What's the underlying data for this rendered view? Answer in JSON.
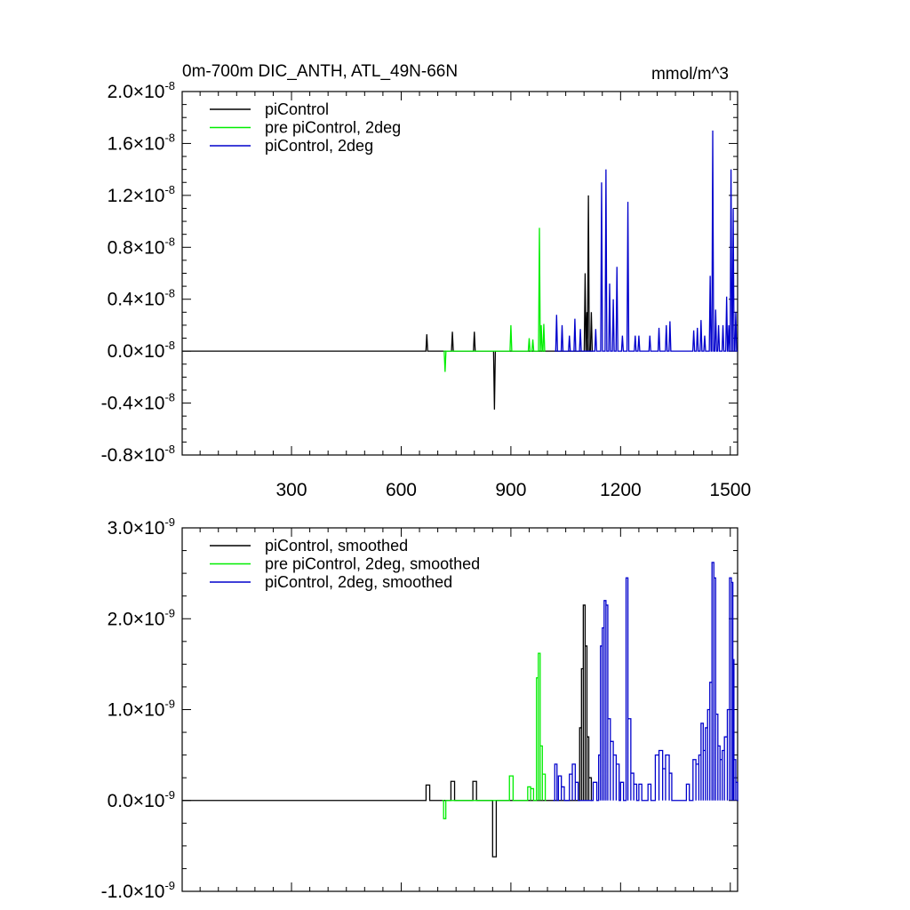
{
  "chart_data": [
    {
      "type": "line",
      "title": "0m-700m DIC_ANTH, ATL_49N-66N",
      "units": "mmol/m^3",
      "xlim": [
        1,
        1520
      ],
      "ylim": [
        -0.8,
        2.0
      ],
      "y_exponent": "-8",
      "y_ticks": [
        "2.0",
        "1.6",
        "1.2",
        "0.8",
        "0.4",
        "0.0",
        "-0.4",
        "-0.8"
      ],
      "y_tick_values": [
        2.0,
        1.6,
        1.2,
        0.8,
        0.4,
        0.0,
        -0.4,
        -0.8
      ],
      "x_ticks": [
        "300",
        "600",
        "900",
        "1200",
        "1500"
      ],
      "x_tick_values": [
        300,
        600,
        900,
        1200,
        1500
      ],
      "legend": "top-left",
      "series": [
        {
          "name": "piControl",
          "color": "#000000",
          "x_range": [
            1,
            1120
          ],
          "spikes": [
            [
              670,
              0.13
            ],
            [
              740,
              0.15
            ],
            [
              800,
              0.15
            ],
            [
              855,
              -0.45
            ],
            [
              1103,
              0.6
            ],
            [
              1108,
              0.3
            ],
            [
              1112,
              1.2
            ],
            [
              1120,
              0.3
            ]
          ]
        },
        {
          "name": "pre piControl, 2deg",
          "color": "#00ee00",
          "x_range": [
            720,
            990
          ],
          "spikes": [
            [
              720,
              -0.16
            ],
            [
              900,
              0.2
            ],
            [
              950,
              0.1
            ],
            [
              960,
              0.09
            ],
            [
              978,
              0.95
            ],
            [
              983,
              0.2
            ],
            [
              990,
              0.21
            ]
          ]
        },
        {
          "name": "piControl, 2deg",
          "color": "#0000cc",
          "x_range": [
            1020,
            1520
          ],
          "spikes": [
            [
              1025,
              0.28
            ],
            [
              1040,
              0.2
            ],
            [
              1060,
              0.12
            ],
            [
              1075,
              0.25
            ],
            [
              1090,
              0.17
            ],
            [
              1132,
              0.17
            ],
            [
              1148,
              1.3
            ],
            [
              1160,
              1.4
            ],
            [
              1170,
              0.52
            ],
            [
              1180,
              0.4
            ],
            [
              1190,
              0.65
            ],
            [
              1205,
              0.12
            ],
            [
              1220,
              1.15
            ],
            [
              1240,
              0.12
            ],
            [
              1250,
              0.12
            ],
            [
              1280,
              0.12
            ],
            [
              1305,
              0.18
            ],
            [
              1325,
              0.2
            ],
            [
              1335,
              0.23
            ],
            [
              1400,
              0.16
            ],
            [
              1410,
              0.18
            ],
            [
              1420,
              0.24
            ],
            [
              1430,
              0.12
            ],
            [
              1445,
              0.58
            ],
            [
              1452,
              1.7
            ],
            [
              1460,
              0.32
            ],
            [
              1468,
              0.2
            ],
            [
              1480,
              0.2
            ],
            [
              1490,
              0.42
            ],
            [
              1496,
              0.2
            ],
            [
              1502,
              1.4
            ],
            [
              1508,
              1.1
            ],
            [
              1515,
              0.3
            ]
          ]
        }
      ]
    },
    {
      "type": "line",
      "title": "",
      "ylim": [
        -1.0,
        3.0
      ],
      "xlim": [
        1,
        1520
      ],
      "y_exponent": "-9",
      "y_ticks": [
        "3.0",
        "2.0",
        "1.0",
        "0.0",
        "-1.0"
      ],
      "y_tick_values": [
        3.0,
        2.0,
        1.0,
        0.0,
        -1.0
      ],
      "x_tick_values": [
        300,
        600,
        900,
        1200,
        1500
      ],
      "legend": "top-left",
      "series": [
        {
          "name": "piControl, smoothed",
          "color": "#000000",
          "blocks": [
            [
              668,
              678,
              0.17
            ],
            [
              736,
              746,
              0.21
            ],
            [
              796,
              806,
              0.21
            ],
            [
              850,
              860,
              -0.62
            ],
            [
              1088,
              1093,
              0.8
            ],
            [
              1093,
              1098,
              1.45
            ],
            [
              1098,
              1103,
              2.15
            ],
            [
              1103,
              1108,
              1.7
            ],
            [
              1108,
              1113,
              0.7
            ],
            [
              1113,
              1120,
              0.25
            ]
          ]
        },
        {
          "name": "pre piControl, 2deg, smoothed",
          "color": "#00ee00",
          "blocks": [
            [
              716,
              722,
              -0.2
            ],
            [
              896,
              906,
              0.27
            ],
            [
              946,
              954,
              0.15
            ],
            [
              954,
              962,
              0.13
            ],
            [
              970,
              975,
              1.35
            ],
            [
              975,
              980,
              1.62
            ],
            [
              980,
              986,
              0.6
            ],
            [
              986,
              994,
              0.29
            ]
          ]
        },
        {
          "name": "piControl, 2deg, smoothed",
          "color": "#0000cc",
          "blocks": [
            [
              1020,
              1026,
              0.4
            ],
            [
              1030,
              1038,
              0.27
            ],
            [
              1038,
              1046,
              0.15
            ],
            [
              1060,
              1068,
              0.29
            ],
            [
              1068,
              1076,
              0.4
            ],
            [
              1076,
              1084,
              0.2
            ],
            [
              1125,
              1135,
              0.2
            ],
            [
              1140,
              1145,
              0.5
            ],
            [
              1145,
              1150,
              1.7
            ],
            [
              1150,
              1155,
              1.9
            ],
            [
              1155,
              1160,
              2.2
            ],
            [
              1160,
              1165,
              2.15
            ],
            [
              1165,
              1172,
              0.9
            ],
            [
              1172,
              1180,
              0.65
            ],
            [
              1180,
              1188,
              0.5
            ],
            [
              1188,
              1196,
              0.4
            ],
            [
              1200,
              1208,
              0.2
            ],
            [
              1215,
              1220,
              2.45
            ],
            [
              1220,
              1228,
              0.9
            ],
            [
              1228,
              1236,
              0.3
            ],
            [
              1236,
              1244,
              0.18
            ],
            [
              1250,
              1258,
              0.18
            ],
            [
              1275,
              1283,
              0.18
            ],
            [
              1295,
              1305,
              0.5
            ],
            [
              1305,
              1315,
              0.55
            ],
            [
              1315,
              1323,
              0.35
            ],
            [
              1323,
              1333,
              0.5
            ],
            [
              1333,
              1340,
              0.3
            ],
            [
              1380,
              1388,
              0.18
            ],
            [
              1398,
              1406,
              0.45
            ],
            [
              1406,
              1414,
              0.4
            ],
            [
              1414,
              1420,
              0.5
            ],
            [
              1420,
              1426,
              0.85
            ],
            [
              1426,
              1432,
              0.55
            ],
            [
              1432,
              1438,
              0.8
            ],
            [
              1438,
              1444,
              1.0
            ],
            [
              1444,
              1450,
              1.3
            ],
            [
              1450,
              1455,
              2.62
            ],
            [
              1455,
              1460,
              2.45
            ],
            [
              1460,
              1466,
              0.95
            ],
            [
              1466,
              1472,
              0.6
            ],
            [
              1472,
              1478,
              0.45
            ],
            [
              1478,
              1484,
              0.55
            ],
            [
              1484,
              1492,
              0.7
            ],
            [
              1492,
              1498,
              1.0
            ],
            [
              1498,
              1503,
              2.45
            ],
            [
              1503,
              1507,
              2.4
            ],
            [
              1507,
              1510,
              1.55
            ],
            [
              1510,
              1515,
              0.45
            ],
            [
              1515,
              1520,
              0.2
            ]
          ]
        }
      ]
    }
  ]
}
